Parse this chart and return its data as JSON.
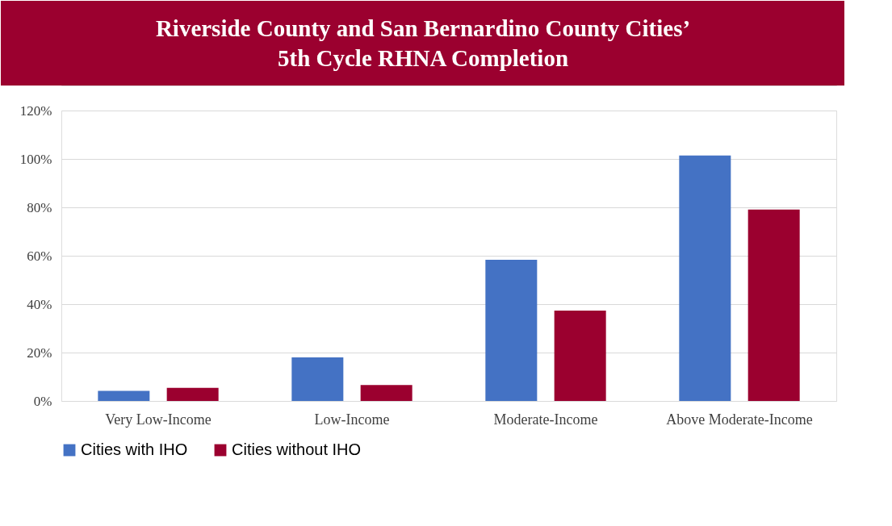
{
  "chart_data": {
    "type": "bar",
    "title": "Riverside County and San Bernardino County Cities’\n5th Cycle RHNA Completion",
    "categories": [
      "Very Low-Income",
      "Low-Income",
      "Moderate-Income",
      "Above Moderate-Income"
    ],
    "series": [
      {
        "name": "Cities with IHO",
        "color": "#4472c4",
        "values": [
          4.2,
          18,
          58.3,
          101.4
        ]
      },
      {
        "name": "Cities without IHO",
        "color": "#9b002f",
        "values": [
          5.4,
          6.6,
          37.3,
          79.1
        ]
      }
    ],
    "ylim": [
      0,
      120
    ],
    "yticks": [
      {
        "value": 0,
        "label": "0%"
      },
      {
        "value": 20,
        "label": "20%"
      },
      {
        "value": 40,
        "label": "40%"
      },
      {
        "value": 60,
        "label": "60%"
      },
      {
        "value": 80,
        "label": "80%"
      },
      {
        "value": 100,
        "label": "100%"
      },
      {
        "value": 120,
        "label": "120%"
      }
    ],
    "grid": "y",
    "legend": "bottom"
  }
}
